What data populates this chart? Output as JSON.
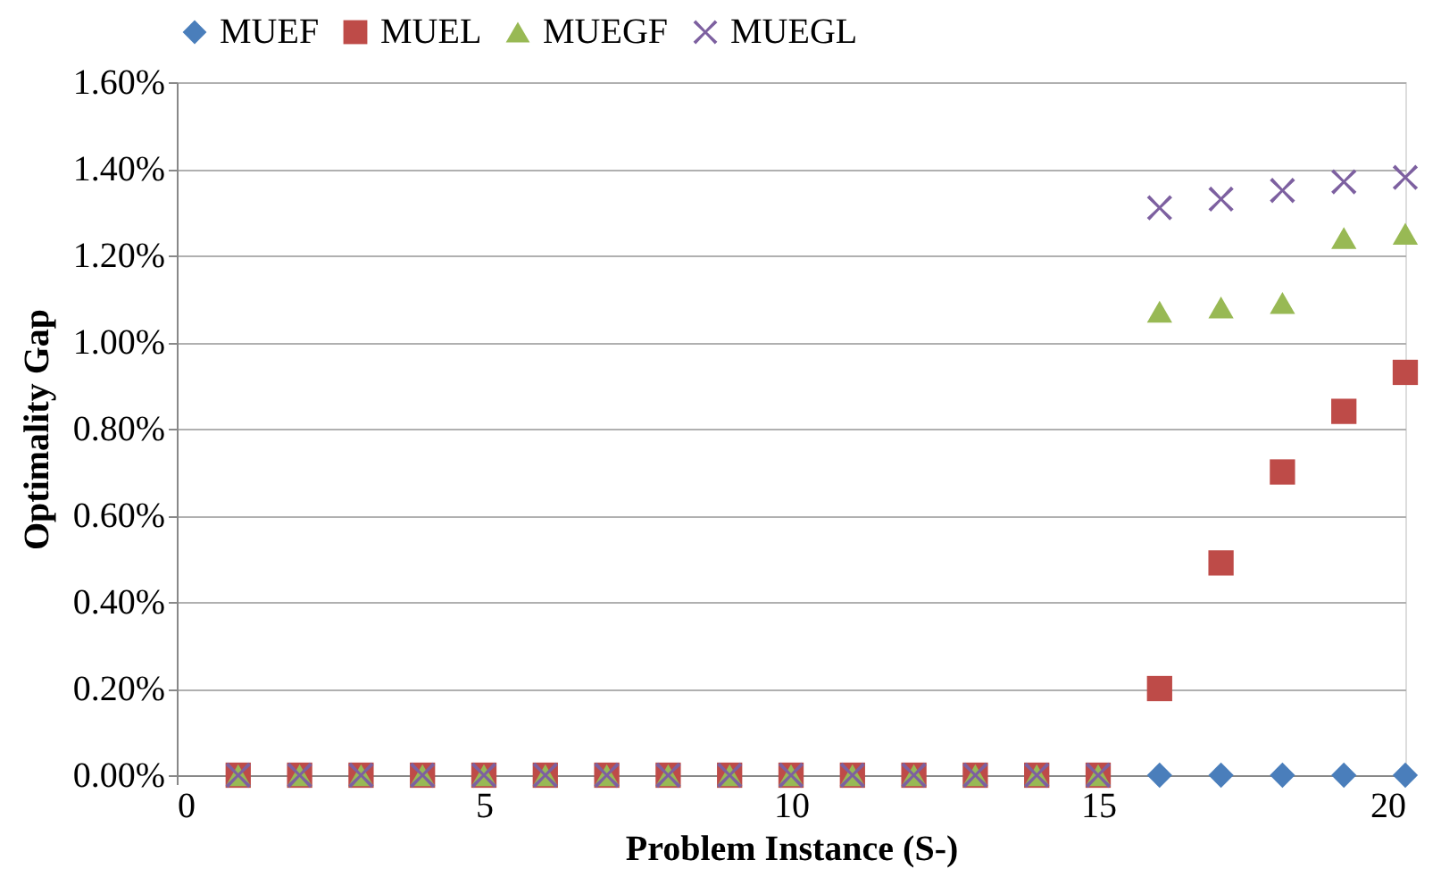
{
  "chart_data": {
    "type": "scatter",
    "xlabel": "Problem Instance (S-)",
    "ylabel": "Optimality Gap",
    "x": [
      1,
      2,
      3,
      4,
      5,
      6,
      7,
      8,
      9,
      10,
      11,
      12,
      13,
      14,
      15,
      16,
      17,
      18,
      19,
      20
    ],
    "series": [
      {
        "name": "MUEF",
        "color": "#4a7ebb",
        "marker": "diamond",
        "values": [
          null,
          null,
          null,
          null,
          null,
          null,
          null,
          null,
          null,
          null,
          null,
          null,
          null,
          null,
          null,
          0,
          0,
          0,
          0,
          0
        ]
      },
      {
        "name": "MUEL",
        "color": "#be4b48",
        "marker": "square",
        "values": [
          0,
          0,
          0,
          0,
          0,
          0,
          0,
          0,
          0,
          0,
          0,
          0,
          0,
          0,
          0,
          0.2,
          0.49,
          0.7,
          0.84,
          0.93
        ]
      },
      {
        "name": "MUEGF",
        "color": "#98b954",
        "marker": "triangle",
        "values": [
          0,
          0,
          0,
          0,
          0,
          0,
          0,
          0,
          0,
          0,
          0,
          0,
          0,
          0,
          0,
          1.07,
          1.08,
          1.09,
          1.24,
          1.25
        ]
      },
      {
        "name": "MUEGL",
        "color": "#7d60a0",
        "marker": "cross",
        "values": [
          0,
          0,
          0,
          0,
          0,
          0,
          0,
          0,
          0,
          0,
          0,
          0,
          0,
          0,
          0,
          1.31,
          1.33,
          1.35,
          1.37,
          1.38
        ]
      }
    ],
    "xlim": [
      0,
      20
    ],
    "xticks": [
      0,
      5,
      10,
      15,
      20
    ],
    "ylim": [
      0,
      1.6
    ],
    "yticks": [
      {
        "value": 0,
        "label": "0.00%"
      },
      {
        "value": 0.2,
        "label": "0.20%"
      },
      {
        "value": 0.4,
        "label": "0.40%"
      },
      {
        "value": 0.6,
        "label": "0.60%"
      },
      {
        "value": 0.8,
        "label": "0.80%"
      },
      {
        "value": 1.0,
        "label": "1.00%"
      },
      {
        "value": 1.2,
        "label": "1.20%"
      },
      {
        "value": 1.4,
        "label": "1.40%"
      },
      {
        "value": 1.6,
        "label": "1.60%"
      }
    ],
    "grid": "y",
    "legend": "top"
  }
}
